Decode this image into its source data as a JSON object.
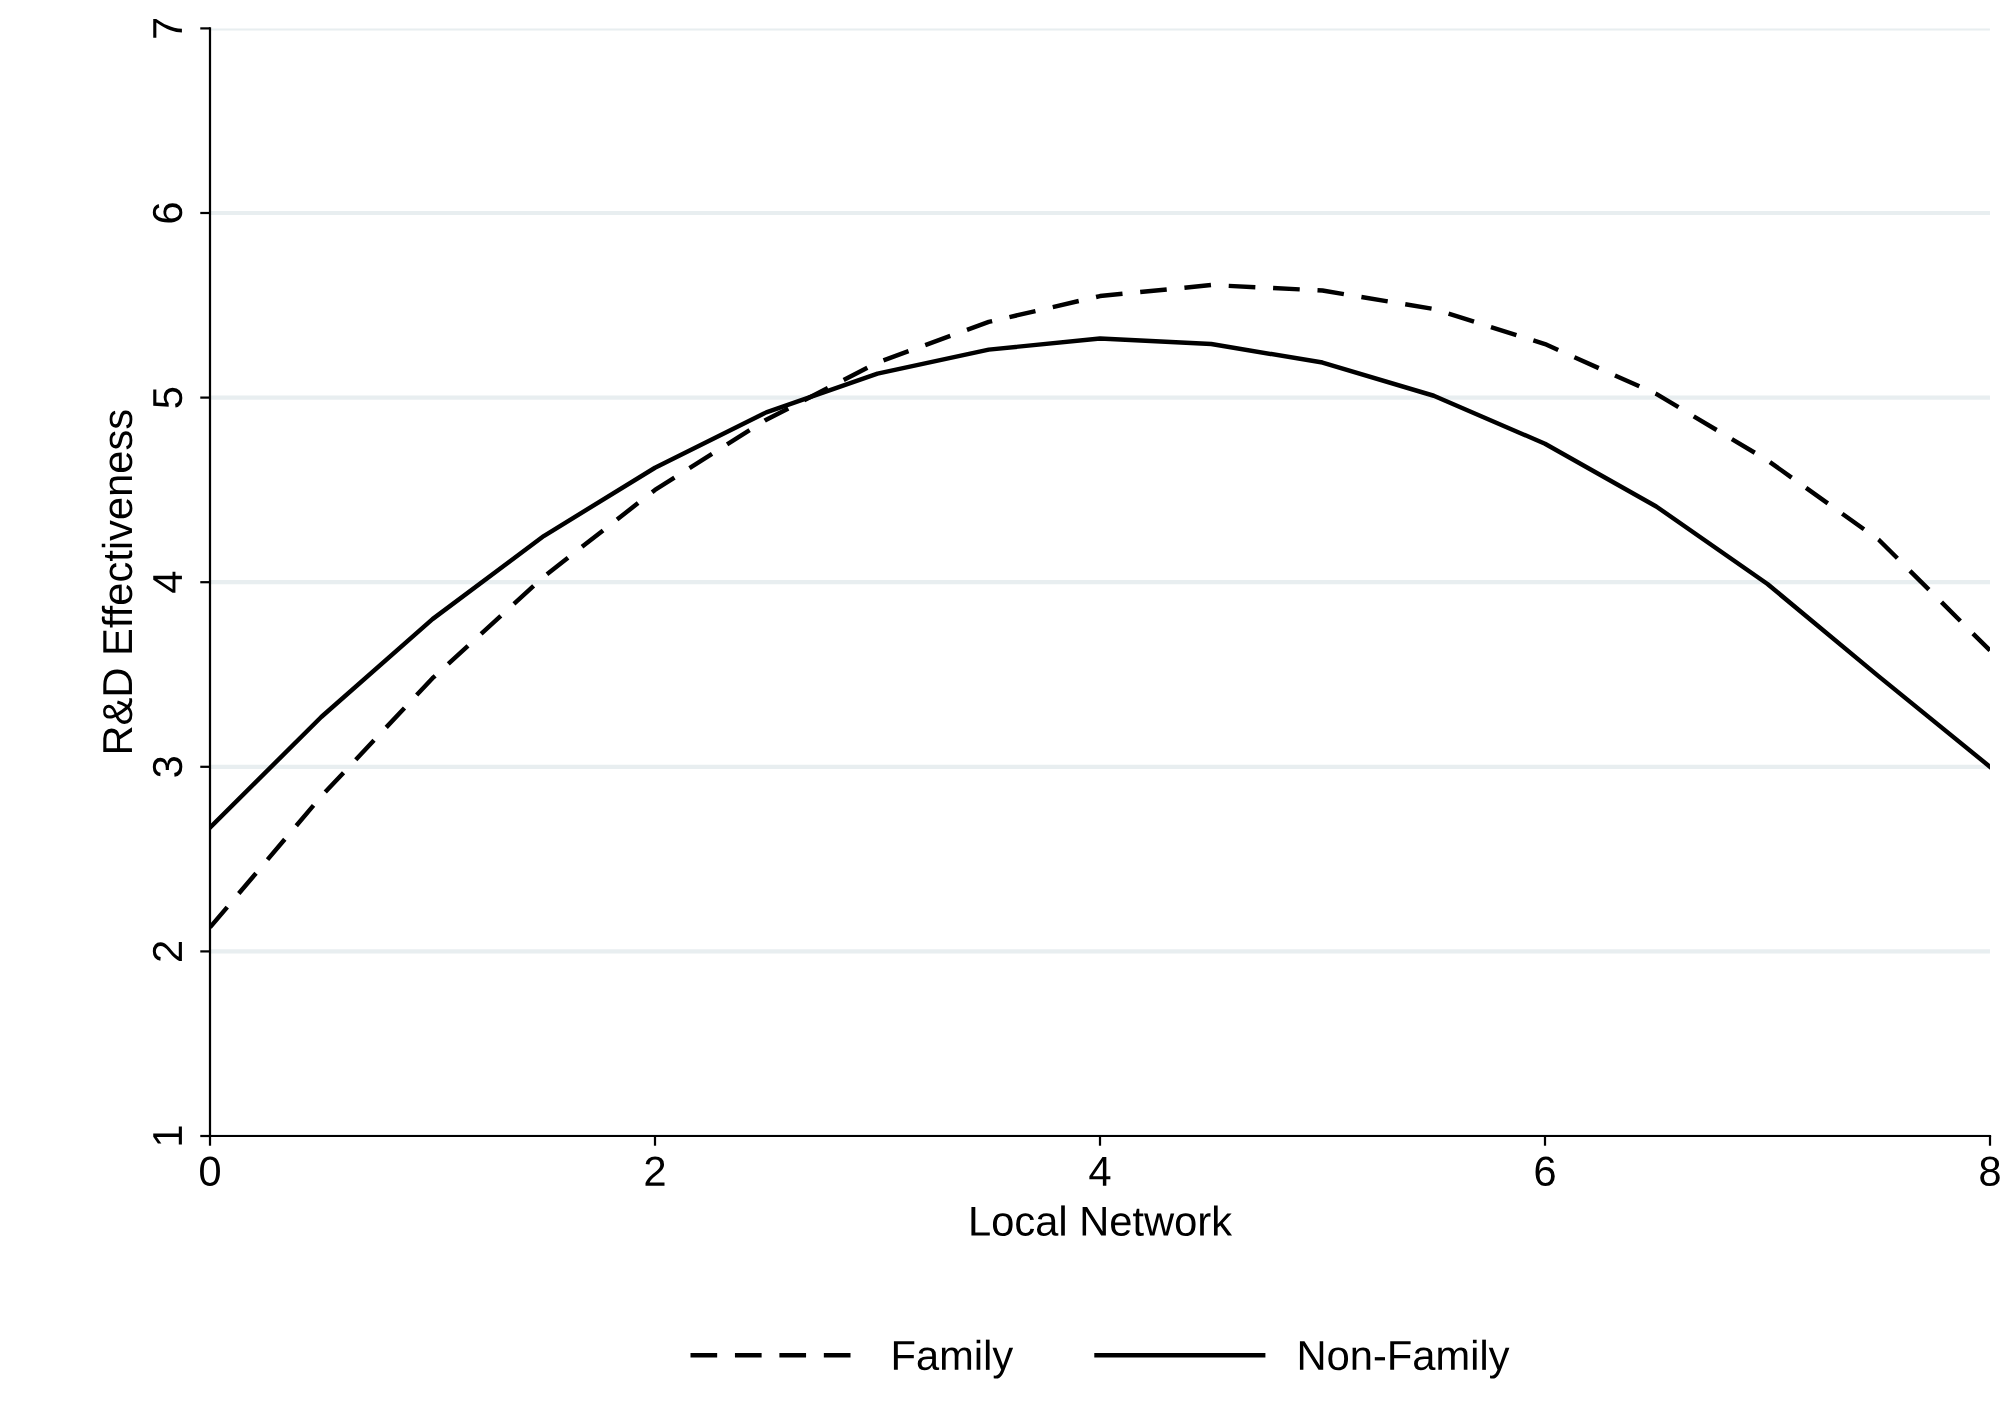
{
  "chart_data": {
    "type": "line",
    "xlabel": "Local Network",
    "ylabel": "R&D Effectiveness",
    "x": [
      0,
      0.5,
      1,
      1.5,
      2,
      2.5,
      3,
      3.5,
      4,
      4.5,
      5,
      5.5,
      6,
      6.5,
      7,
      7.5,
      8
    ],
    "series": [
      {
        "name": "Family",
        "color": "#000000",
        "line_style": "dashed",
        "values": [
          2.13,
          2.84,
          3.48,
          4.03,
          4.5,
          4.88,
          5.19,
          5.41,
          5.55,
          5.61,
          5.58,
          5.48,
          5.29,
          5.02,
          4.66,
          4.23,
          3.63
        ]
      },
      {
        "name": "Non-Family",
        "color": "#000000",
        "line_style": "solid",
        "values": [
          2.67,
          3.27,
          3.8,
          4.25,
          4.62,
          4.92,
          5.13,
          5.26,
          5.32,
          5.29,
          5.19,
          5.01,
          4.75,
          4.41,
          3.99,
          3.49,
          3.0
        ]
      }
    ],
    "xlim": [
      0,
      8
    ],
    "xticks": [
      0,
      2,
      4,
      6,
      8
    ],
    "ylim": [
      1,
      7
    ],
    "yticks": [
      1,
      2,
      3,
      4,
      5,
      6,
      7
    ],
    "grid": "y",
    "legend": "bottom",
    "marker": "none"
  }
}
